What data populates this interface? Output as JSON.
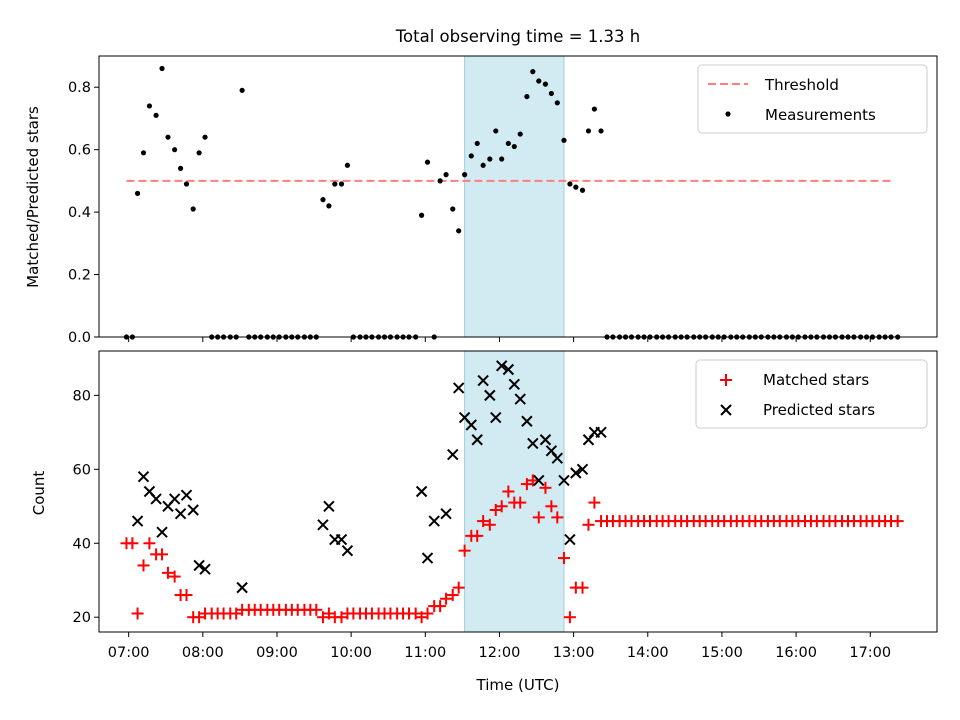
{
  "figure": {
    "title": "Total observing time = 1.33 h"
  },
  "colors": {
    "threshold": "#ff7f7f",
    "measurement": "#000000",
    "matched": "#ff0000",
    "predicted": "#000000",
    "highlight": "#add8e6"
  },
  "chart_data": [
    {
      "type": "scatter",
      "id": "ratio-panel",
      "title": "Total observing time = 1.33 h",
      "xlabel": "",
      "ylabel": "Matched/Predicted stars",
      "x_unit": "hours UTC",
      "xlim": [
        6.6,
        17.9
      ],
      "ylim": [
        0.0,
        0.9
      ],
      "yticks": [
        0.0,
        0.2,
        0.4,
        0.6,
        0.8
      ],
      "ytick_labels": [
        "0.0",
        "0.2",
        "0.4",
        "0.6",
        "0.8"
      ],
      "xticks": [
        7,
        8,
        9,
        10,
        11,
        12,
        13,
        14,
        15,
        16,
        17
      ],
      "grid": false,
      "legend_position": "top-right",
      "highlight_span": [
        11.53,
        12.87
      ],
      "threshold": {
        "name": "Threshold",
        "x": [
          6.97,
          17.32
        ],
        "y": 0.5
      },
      "series": [
        {
          "name": "Measurements",
          "x": [
            6.97,
            7.05,
            7.12,
            7.2,
            7.28,
            7.37,
            7.45,
            7.53,
            7.62,
            7.7,
            7.78,
            7.87,
            7.95,
            8.03,
            8.12,
            8.2,
            8.28,
            8.37,
            8.45,
            8.53,
            8.62,
            8.7,
            8.78,
            8.87,
            8.95,
            9.03,
            9.12,
            9.2,
            9.28,
            9.37,
            9.45,
            9.53,
            9.62,
            9.7,
            9.78,
            9.87,
            9.95,
            10.03,
            10.12,
            10.2,
            10.28,
            10.37,
            10.45,
            10.53,
            10.62,
            10.7,
            10.78,
            10.87,
            10.95,
            11.03,
            11.12,
            11.2,
            11.28,
            11.37,
            11.45,
            11.53,
            11.62,
            11.7,
            11.78,
            11.87,
            11.95,
            12.03,
            12.12,
            12.2,
            12.28,
            12.37,
            12.45,
            12.53,
            12.62,
            12.7,
            12.78,
            12.87,
            12.95,
            13.03,
            13.12,
            13.2,
            13.28,
            13.37,
            13.45,
            13.53,
            13.62,
            13.7,
            13.78,
            13.87,
            13.95,
            14.03,
            14.12,
            14.2,
            14.28,
            14.37,
            14.45,
            14.53,
            14.62,
            14.7,
            14.78,
            14.87,
            14.95,
            15.03,
            15.12,
            15.2,
            15.28,
            15.37,
            15.45,
            15.53,
            15.62,
            15.7,
            15.78,
            15.87,
            15.95,
            16.03,
            16.12,
            16.2,
            16.28,
            16.37,
            16.45,
            16.53,
            16.62,
            16.7,
            16.78,
            16.87,
            16.95,
            17.03,
            17.12,
            17.2,
            17.28,
            17.37
          ],
          "y": [
            0.0,
            0.0,
            0.46,
            0.59,
            0.74,
            0.71,
            0.86,
            0.64,
            0.6,
            0.54,
            0.49,
            0.41,
            0.59,
            0.64,
            0.0,
            0.0,
            0.0,
            0.0,
            0.0,
            0.79,
            0.0,
            0.0,
            0.0,
            0.0,
            0.0,
            0.0,
            0.0,
            0.0,
            0.0,
            0.0,
            0.0,
            0.0,
            0.44,
            0.42,
            0.49,
            0.49,
            0.55,
            0.0,
            0.0,
            0.0,
            0.0,
            0.0,
            0.0,
            0.0,
            0.0,
            0.0,
            0.0,
            0.0,
            0.39,
            0.56,
            0.0,
            0.5,
            0.52,
            0.41,
            0.34,
            0.52,
            0.58,
            0.62,
            0.55,
            0.57,
            0.66,
            0.57,
            0.62,
            0.61,
            0.65,
            0.77,
            0.85,
            0.82,
            0.81,
            0.78,
            0.75,
            0.63,
            0.49,
            0.48,
            0.47,
            0.66,
            0.73,
            0.66,
            0.0,
            0.0,
            0.0,
            0.0,
            0.0,
            0.0,
            0.0,
            0.0,
            0.0,
            0.0,
            0.0,
            0.0,
            0.0,
            0.0,
            0.0,
            0.0,
            0.0,
            0.0,
            0.0,
            0.0,
            0.0,
            0.0,
            0.0,
            0.0,
            0.0,
            0.0,
            0.0,
            0.0,
            0.0,
            0.0,
            0.0,
            0.0,
            0.0,
            0.0,
            0.0,
            0.0,
            0.0,
            0.0,
            0.0,
            0.0,
            0.0,
            0.0,
            0.0,
            0.0,
            0.0,
            0.0,
            0.0,
            0.0
          ]
        }
      ]
    },
    {
      "type": "scatter",
      "id": "count-panel",
      "title": "",
      "xlabel": "Time (UTC)",
      "ylabel": "Count",
      "x_unit": "hours UTC",
      "xlim": [
        6.6,
        17.9
      ],
      "ylim": [
        16,
        92
      ],
      "yticks": [
        20,
        40,
        60,
        80
      ],
      "ytick_labels": [
        "20",
        "40",
        "60",
        "80"
      ],
      "xticks": [
        7,
        8,
        9,
        10,
        11,
        12,
        13,
        14,
        15,
        16,
        17
      ],
      "xtick_labels": [
        "07:00",
        "08:00",
        "09:00",
        "10:00",
        "11:00",
        "12:00",
        "13:00",
        "14:00",
        "15:00",
        "16:00",
        "17:00"
      ],
      "grid": false,
      "legend_position": "top-right",
      "highlight_span": [
        11.53,
        12.87
      ],
      "series": [
        {
          "name": "Matched stars",
          "marker": "plus",
          "x": [
            6.97,
            7.05,
            7.12,
            7.2,
            7.28,
            7.37,
            7.45,
            7.53,
            7.62,
            7.7,
            7.78,
            7.87,
            7.95,
            8.03,
            8.12,
            8.2,
            8.28,
            8.37,
            8.45,
            8.53,
            8.62,
            8.7,
            8.78,
            8.87,
            8.95,
            9.03,
            9.12,
            9.2,
            9.28,
            9.37,
            9.45,
            9.53,
            9.62,
            9.7,
            9.78,
            9.87,
            9.95,
            10.03,
            10.12,
            10.2,
            10.28,
            10.37,
            10.45,
            10.53,
            10.62,
            10.7,
            10.78,
            10.87,
            10.95,
            11.03,
            11.12,
            11.2,
            11.28,
            11.37,
            11.45,
            11.53,
            11.62,
            11.7,
            11.78,
            11.87,
            11.95,
            12.03,
            12.12,
            12.2,
            12.28,
            12.37,
            12.45,
            12.53,
            12.62,
            12.7,
            12.78,
            12.87,
            12.95,
            13.03,
            13.12,
            13.2,
            13.28,
            13.37,
            13.45,
            13.53,
            13.62,
            13.7,
            13.78,
            13.87,
            13.95,
            14.03,
            14.12,
            14.2,
            14.28,
            14.37,
            14.45,
            14.53,
            14.62,
            14.7,
            14.78,
            14.87,
            14.95,
            15.03,
            15.12,
            15.2,
            15.28,
            15.37,
            15.45,
            15.53,
            15.62,
            15.7,
            15.78,
            15.87,
            15.95,
            16.03,
            16.12,
            16.2,
            16.28,
            16.37,
            16.45,
            16.53,
            16.62,
            16.7,
            16.78,
            16.87,
            16.95,
            17.03,
            17.12,
            17.2,
            17.28,
            17.37
          ],
          "y": [
            40,
            40,
            21,
            34,
            40,
            37,
            37,
            32,
            31,
            26,
            26,
            20,
            20,
            21,
            21,
            21,
            21,
            21,
            21,
            22,
            22,
            22,
            22,
            22,
            22,
            22,
            22,
            22,
            22,
            22,
            22,
            22,
            20,
            21,
            20,
            20,
            21,
            21,
            21,
            21,
            21,
            21,
            21,
            21,
            21,
            21,
            21,
            21,
            20,
            21,
            23,
            23,
            25,
            26,
            28,
            38,
            42,
            42,
            46,
            45,
            49,
            50,
            54,
            51,
            51,
            56,
            57,
            47,
            55,
            50,
            47,
            36,
            20,
            28,
            28,
            45,
            51,
            46,
            46,
            46,
            46,
            46,
            46,
            46,
            46,
            46,
            46,
            46,
            46,
            46,
            46,
            46,
            46,
            46,
            46,
            46,
            46,
            46,
            46,
            46,
            46,
            46,
            46,
            46,
            46,
            46,
            46,
            46,
            46,
            46,
            46,
            46,
            46,
            46,
            46,
            46,
            46,
            46,
            46,
            46,
            46,
            46,
            46,
            46,
            46,
            46
          ]
        },
        {
          "name": "Predicted stars",
          "marker": "x",
          "x": [
            7.12,
            7.2,
            7.28,
            7.37,
            7.45,
            7.53,
            7.62,
            7.7,
            7.78,
            7.87,
            7.95,
            8.03,
            8.53,
            9.62,
            9.7,
            9.78,
            9.87,
            9.95,
            10.95,
            11.03,
            11.12,
            11.28,
            11.37,
            11.45,
            11.53,
            11.62,
            11.7,
            11.78,
            11.87,
            11.95,
            12.03,
            12.12,
            12.2,
            12.28,
            12.37,
            12.45,
            12.53,
            12.62,
            12.7,
            12.78,
            12.87,
            12.95,
            13.03,
            13.12,
            13.2,
            13.28,
            13.37
          ],
          "y": [
            46,
            58,
            54,
            52,
            43,
            50,
            52,
            48,
            53,
            49,
            34,
            33,
            28,
            45,
            50,
            41,
            41,
            38,
            54,
            36,
            46,
            48,
            64,
            82,
            74,
            72,
            68,
            84,
            80,
            74,
            88,
            87,
            83,
            79,
            73,
            67,
            57,
            68,
            65,
            63,
            57,
            41,
            59,
            60,
            68,
            70,
            70
          ]
        }
      ]
    }
  ]
}
